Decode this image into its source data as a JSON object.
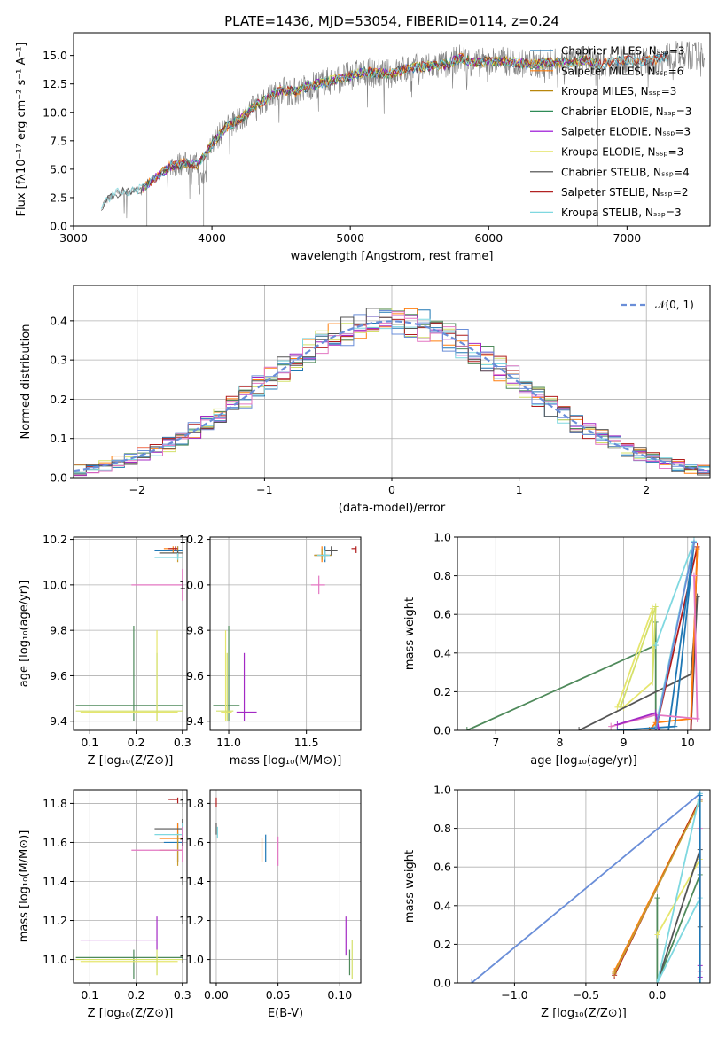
{
  "chart_data": [
    {
      "id": "spectrum",
      "type": "line",
      "title": "PLATE=1436, MJD=53054, FIBERID=0114, z=0.24",
      "xlabel": "wavelength [Angstrom, rest frame]",
      "ylabel": "Flux [fλ10⁻¹⁷ erg cm⁻² s⁻¹ A⁻¹]",
      "xlim": [
        3000,
        7600
      ],
      "ylim": [
        0,
        17
      ],
      "xticks": [
        3000,
        4000,
        5000,
        6000,
        7000
      ],
      "yticks": [
        0.0,
        2.5,
        5.0,
        7.5,
        10.0,
        12.5,
        15.0
      ],
      "xtick_labels": [
        "3000",
        "4000",
        "5000",
        "6000",
        "7000"
      ],
      "ytick_labels": [
        "0.0",
        "2.5",
        "5.0",
        "7.5",
        "10.0",
        "12.5",
        "15.0"
      ],
      "grid": false,
      "legend_position": "top-right",
      "legend": [
        {
          "label": "Chabrier MILES, Nₛₛₚ=3",
          "color": "#1f77b4"
        },
        {
          "label": "Salpeter MILES, Nₛₛₚ=6",
          "color": "#ff7f0e"
        },
        {
          "label": "Kroupa MILES, Nₛₛₚ=3",
          "color": "#b8860b"
        },
        {
          "label": "Chabrier ELODIE, Nₛₛₚ=3",
          "color": "#2e8b57"
        },
        {
          "label": "Salpeter ELODIE, Nₛₛₚ=3",
          "color": "#9400d3"
        },
        {
          "label": "Kroupa ELODIE, Nₛₛₚ=3",
          "color": "#dddd44"
        },
        {
          "label": "Chabrier STELIB, Nₛₛₚ=4",
          "color": "#444444"
        },
        {
          "label": "Salpeter STELIB, Nₛₛₚ=2",
          "color": "#b22222"
        },
        {
          "label": "Kroupa STELIB, Nₛₛₚ=3",
          "color": "#7fd8e0"
        }
      ],
      "data_color": "#808080",
      "series_x": [
        3200,
        3300,
        3400,
        3500,
        3600,
        3700,
        3800,
        3900,
        4000,
        4100,
        4200,
        4300,
        4400,
        4500,
        4600,
        4700,
        4800,
        4900,
        5000,
        5100,
        5200,
        5300,
        5400,
        5500,
        5600,
        5700,
        5800,
        5900,
        6000,
        6100,
        6200,
        6300,
        6400,
        6500,
        6600,
        6700,
        6800,
        6900,
        7000,
        7100,
        7200,
        7300
      ],
      "series_y": [
        1.8,
        2.9,
        3.0,
        3.3,
        4.3,
        5.3,
        5.5,
        5.4,
        7.2,
        8.7,
        9.3,
        10.5,
        11.2,
        12.0,
        11.8,
        12.3,
        12.6,
        12.9,
        13.2,
        13.6,
        13.4,
        13.4,
        13.8,
        14.0,
        14.1,
        14.2,
        14.8,
        14.3,
        14.5,
        14.5,
        14.4,
        14.2,
        14.3,
        14.4,
        14.4,
        14.6,
        14.2,
        14.5,
        14.6,
        14.5,
        14.6,
        15.0
      ]
    },
    {
      "id": "residuals",
      "type": "bar",
      "xlabel": "(data-model)/error",
      "ylabel": "Normed distribution",
      "xlim": [
        -2.5,
        2.5
      ],
      "ylim": [
        0,
        0.49
      ],
      "xticks": [
        -2,
        -1,
        0,
        1,
        2
      ],
      "yticks": [
        0.0,
        0.1,
        0.2,
        0.3,
        0.4
      ],
      "xtick_labels": [
        "−2",
        "−1",
        "0",
        "1",
        "2"
      ],
      "ytick_labels": [
        "0.0",
        "0.1",
        "0.2",
        "0.3",
        "0.4"
      ],
      "grid": true,
      "legend_position": "top-right",
      "legend": [
        {
          "label": "𝒩(0, 1)",
          "color": "#6a8ed8"
        }
      ],
      "bin_width": 0.1
    },
    {
      "id": "age-vs-Z",
      "type": "scatter",
      "xlabel": "Z [log₁₀(Z/Z⊙)]",
      "ylabel": "age  [log₁₀(age/yr)]",
      "xlim": [
        0.065,
        0.31
      ],
      "ylim": [
        9.36,
        10.21
      ],
      "xticks": [
        0.1,
        0.2,
        0.3
      ],
      "yticks": [
        9.4,
        9.6,
        9.8,
        10.0,
        10.2
      ],
      "xtick_labels": [
        "0.1",
        "0.2",
        "0.3"
      ],
      "ytick_labels": [
        "9.4",
        "9.6",
        "9.8",
        "10.0",
        "10.2"
      ],
      "grid": true
    },
    {
      "id": "age-vs-mass",
      "type": "scatter",
      "xlabel": "mass [log₁₀(M/M⊙)]",
      "xlim": [
        10.88,
        11.85
      ],
      "ylim": [
        9.36,
        10.21
      ],
      "xticks": [
        11.0,
        11.5
      ],
      "yticks": [
        9.4,
        9.6,
        9.8,
        10.0,
        10.2
      ],
      "xtick_labels": [
        "11.0",
        "11.5"
      ],
      "ytick_labels": [
        "9.4",
        "9.6",
        "9.8",
        "10.0",
        "10.2"
      ],
      "grid": true
    },
    {
      "id": "weight-vs-age",
      "type": "line",
      "xlabel": "age  [log₁₀(age/yr)]",
      "ylabel": "mass weight",
      "xlim": [
        6.4,
        10.35
      ],
      "ylim": [
        0,
        1
      ],
      "xticks": [
        7,
        8,
        9,
        10
      ],
      "yticks": [
        0.0,
        0.2,
        0.4,
        0.6,
        0.8,
        1.0
      ],
      "xtick_labels": [
        "7",
        "8",
        "9",
        "10"
      ],
      "ytick_labels": [
        "0.0",
        "0.2",
        "0.4",
        "0.6",
        "0.8",
        "1.0"
      ],
      "grid": true
    },
    {
      "id": "mass-vs-Z",
      "type": "scatter",
      "xlabel": "Z [log₁₀(Z/Z⊙)]",
      "ylabel": "mass [log₁₀(M/M⊙)]",
      "xlim": [
        0.065,
        0.31
      ],
      "ylim": [
        10.88,
        11.87
      ],
      "xticks": [
        0.1,
        0.2,
        0.3
      ],
      "yticks": [
        11.0,
        11.2,
        11.4,
        11.6,
        11.8
      ],
      "xtick_labels": [
        "0.1",
        "0.2",
        "0.3"
      ],
      "ytick_labels": [
        "11.0",
        "11.2",
        "11.4",
        "11.6",
        "11.8"
      ],
      "grid": true
    },
    {
      "id": "mass-vs-ebv",
      "type": "scatter",
      "xlabel": "E(B-V)",
      "xlim": [
        -0.005,
        0.117
      ],
      "ylim": [
        10.88,
        11.87
      ],
      "xticks": [
        0.0,
        0.05,
        0.1
      ],
      "yticks": [
        11.0,
        11.2,
        11.4,
        11.6,
        11.8
      ],
      "xtick_labels": [
        "0.00",
        "0.05",
        "0.10"
      ],
      "ytick_labels": [
        "11.0",
        "11.2",
        "11.4",
        "11.6",
        "11.8"
      ],
      "grid": true
    },
    {
      "id": "weight-vs-Z",
      "type": "line",
      "xlabel": "Z [log₁₀(Z/Z⊙)]",
      "ylabel": "mass weight",
      "xlim": [
        -1.4,
        0.37
      ],
      "ylim": [
        0,
        1
      ],
      "xticks": [
        -1.0,
        -0.5,
        0.0
      ],
      "yticks": [
        0.0,
        0.2,
        0.4,
        0.6,
        0.8,
        1.0
      ],
      "xtick_labels": [
        "−1.0",
        "−0.5",
        "0.0"
      ],
      "ytick_labels": [
        "0.0",
        "0.2",
        "0.4",
        "0.6",
        "0.8",
        "1.0"
      ],
      "grid": true
    }
  ]
}
